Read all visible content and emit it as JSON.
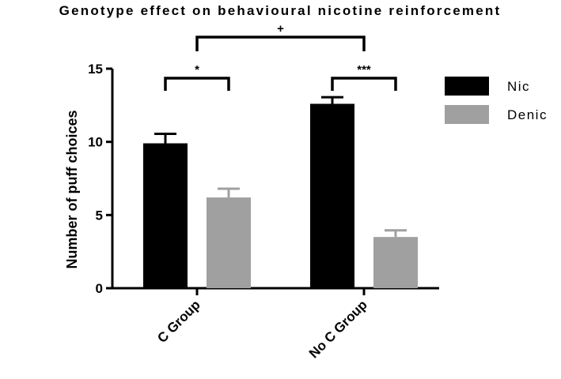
{
  "chart_data": {
    "type": "bar",
    "title": "Genotype effect on behavioural nicotine reinforcement",
    "ylabel": "Number of puff choices",
    "xlabel": "",
    "ylim": [
      0,
      15
    ],
    "yticks": [
      "0",
      "5",
      "10",
      "15"
    ],
    "categories": [
      "C Group",
      "No C Group"
    ],
    "series": [
      {
        "name": "Nic",
        "color": "#000000",
        "values": [
          9.9,
          12.6
        ],
        "errors": [
          0.65,
          0.45
        ]
      },
      {
        "name": "Denic",
        "color": "#a0a0a0",
        "values": [
          6.2,
          3.5
        ],
        "errors": [
          0.6,
          0.45
        ]
      }
    ],
    "legend_position": "right",
    "grid": false,
    "annotations": [
      {
        "label": "*",
        "between": "C Group Nic vs C Group Denic"
      },
      {
        "label": "***",
        "between": "No C Group Nic vs No C Group Denic"
      },
      {
        "label": "+",
        "between": "C Group vs No C Group"
      }
    ]
  }
}
